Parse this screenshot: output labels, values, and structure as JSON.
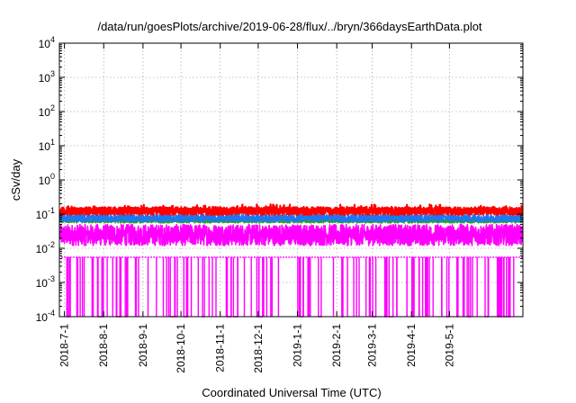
{
  "chart_data": {
    "type": "line",
    "title": "/data/run/goesPlots/archive/2019-06-28/flux/../bryn/366daysEarthData.plot",
    "xlabel": "Coordinated Universal Time (UTC)",
    "ylabel": "cSv/day",
    "yscale": "log",
    "ylim": [
      0.0001,
      10000
    ],
    "y_ticks": [
      {
        "value": 0.0001,
        "base": "10",
        "exp": "-4"
      },
      {
        "value": 0.001,
        "base": "10",
        "exp": "-3"
      },
      {
        "value": 0.01,
        "base": "10",
        "exp": "-2"
      },
      {
        "value": 0.1,
        "base": "10",
        "exp": "-1"
      },
      {
        "value": 1,
        "base": "10",
        "exp": "0"
      },
      {
        "value": 10,
        "base": "10",
        "exp": "1"
      },
      {
        "value": 100,
        "base": "10",
        "exp": "2"
      },
      {
        "value": 1000,
        "base": "10",
        "exp": "3"
      },
      {
        "value": 10000,
        "base": "10",
        "exp": "4"
      }
    ],
    "xlim": [
      "2018-06-27",
      "2019-06-28"
    ],
    "x_ticks": [
      {
        "date": "2018-07-01",
        "label": "2018-7-1"
      },
      {
        "date": "2018-08-01",
        "label": "2018-8-1"
      },
      {
        "date": "2018-09-01",
        "label": "2018-9-1"
      },
      {
        "date": "2018-10-01",
        "label": "2018-10-1"
      },
      {
        "date": "2018-11-01",
        "label": "2018-11-1"
      },
      {
        "date": "2018-12-01",
        "label": "2018-12-1"
      },
      {
        "date": "2019-01-01",
        "label": "2019-1-1"
      },
      {
        "date": "2019-02-01",
        "label": "2019-2-1"
      },
      {
        "date": "2019-03-01",
        "label": "2019-3-1"
      },
      {
        "date": "2019-04-01",
        "label": "2019-4-1"
      },
      {
        "date": "2019-05-01",
        "label": "2019-5-1"
      }
    ],
    "grid": true,
    "series": [
      {
        "color": "#ff00ff",
        "typical": 0.03,
        "spread": [
          0.012,
          0.05
        ],
        "floor": 0.0055,
        "note_dropouts_to": 0.0001
      },
      {
        "color": "#2ca02c",
        "typical": 0.065,
        "spread": [
          0.055,
          0.075
        ]
      },
      {
        "color": "#1f77f0",
        "typical": 0.08,
        "spread": [
          0.06,
          0.1
        ]
      },
      {
        "color": "#ff0000",
        "typical": 0.11,
        "spread": [
          0.095,
          0.16
        ]
      }
    ]
  }
}
